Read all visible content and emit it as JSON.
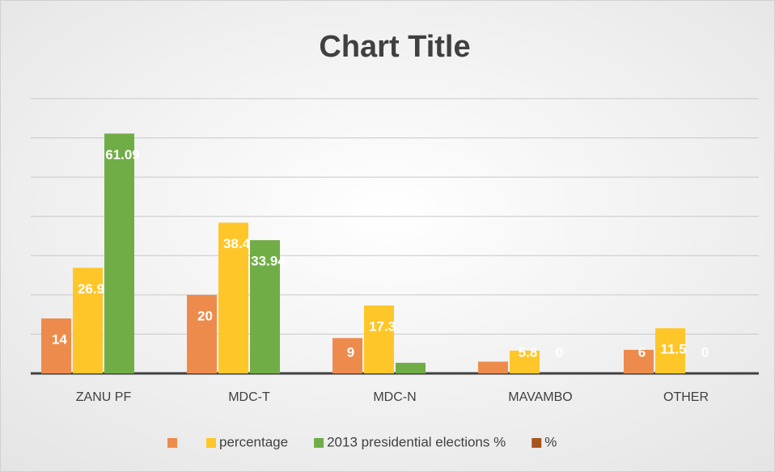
{
  "chart_data": {
    "type": "bar",
    "title": "Chart Title",
    "categories": [
      "ZANU PF",
      "MDC-T",
      "MDC-N",
      "MAVAMBO",
      "OTHER"
    ],
    "series": [
      {
        "color": "#ed8b4c",
        "values": [
          14,
          20,
          9,
          3,
          6
        ],
        "value_labels": [
          "14",
          "20",
          "9",
          null,
          "6"
        ]
      },
      {
        "name": "percentage",
        "color": "#ffc629",
        "values": [
          26.9,
          38.4,
          17.3,
          5.8,
          11.5
        ]
      },
      {
        "name": "2013 presidential elections %",
        "color": "#70ad47",
        "values": [
          61.09,
          33.94,
          2.7,
          0,
          0
        ],
        "value_labels": [
          "61.09",
          "33.94",
          null,
          "0",
          "0"
        ]
      },
      {
        "name": "%",
        "color": "#a5561f",
        "values": [
          null,
          null,
          null,
          null,
          null
        ]
      }
    ],
    "ylim": [
      0,
      70
    ],
    "yticks": [
      0,
      10,
      20,
      30,
      40,
      50,
      60,
      70
    ],
    "grid": true
  }
}
